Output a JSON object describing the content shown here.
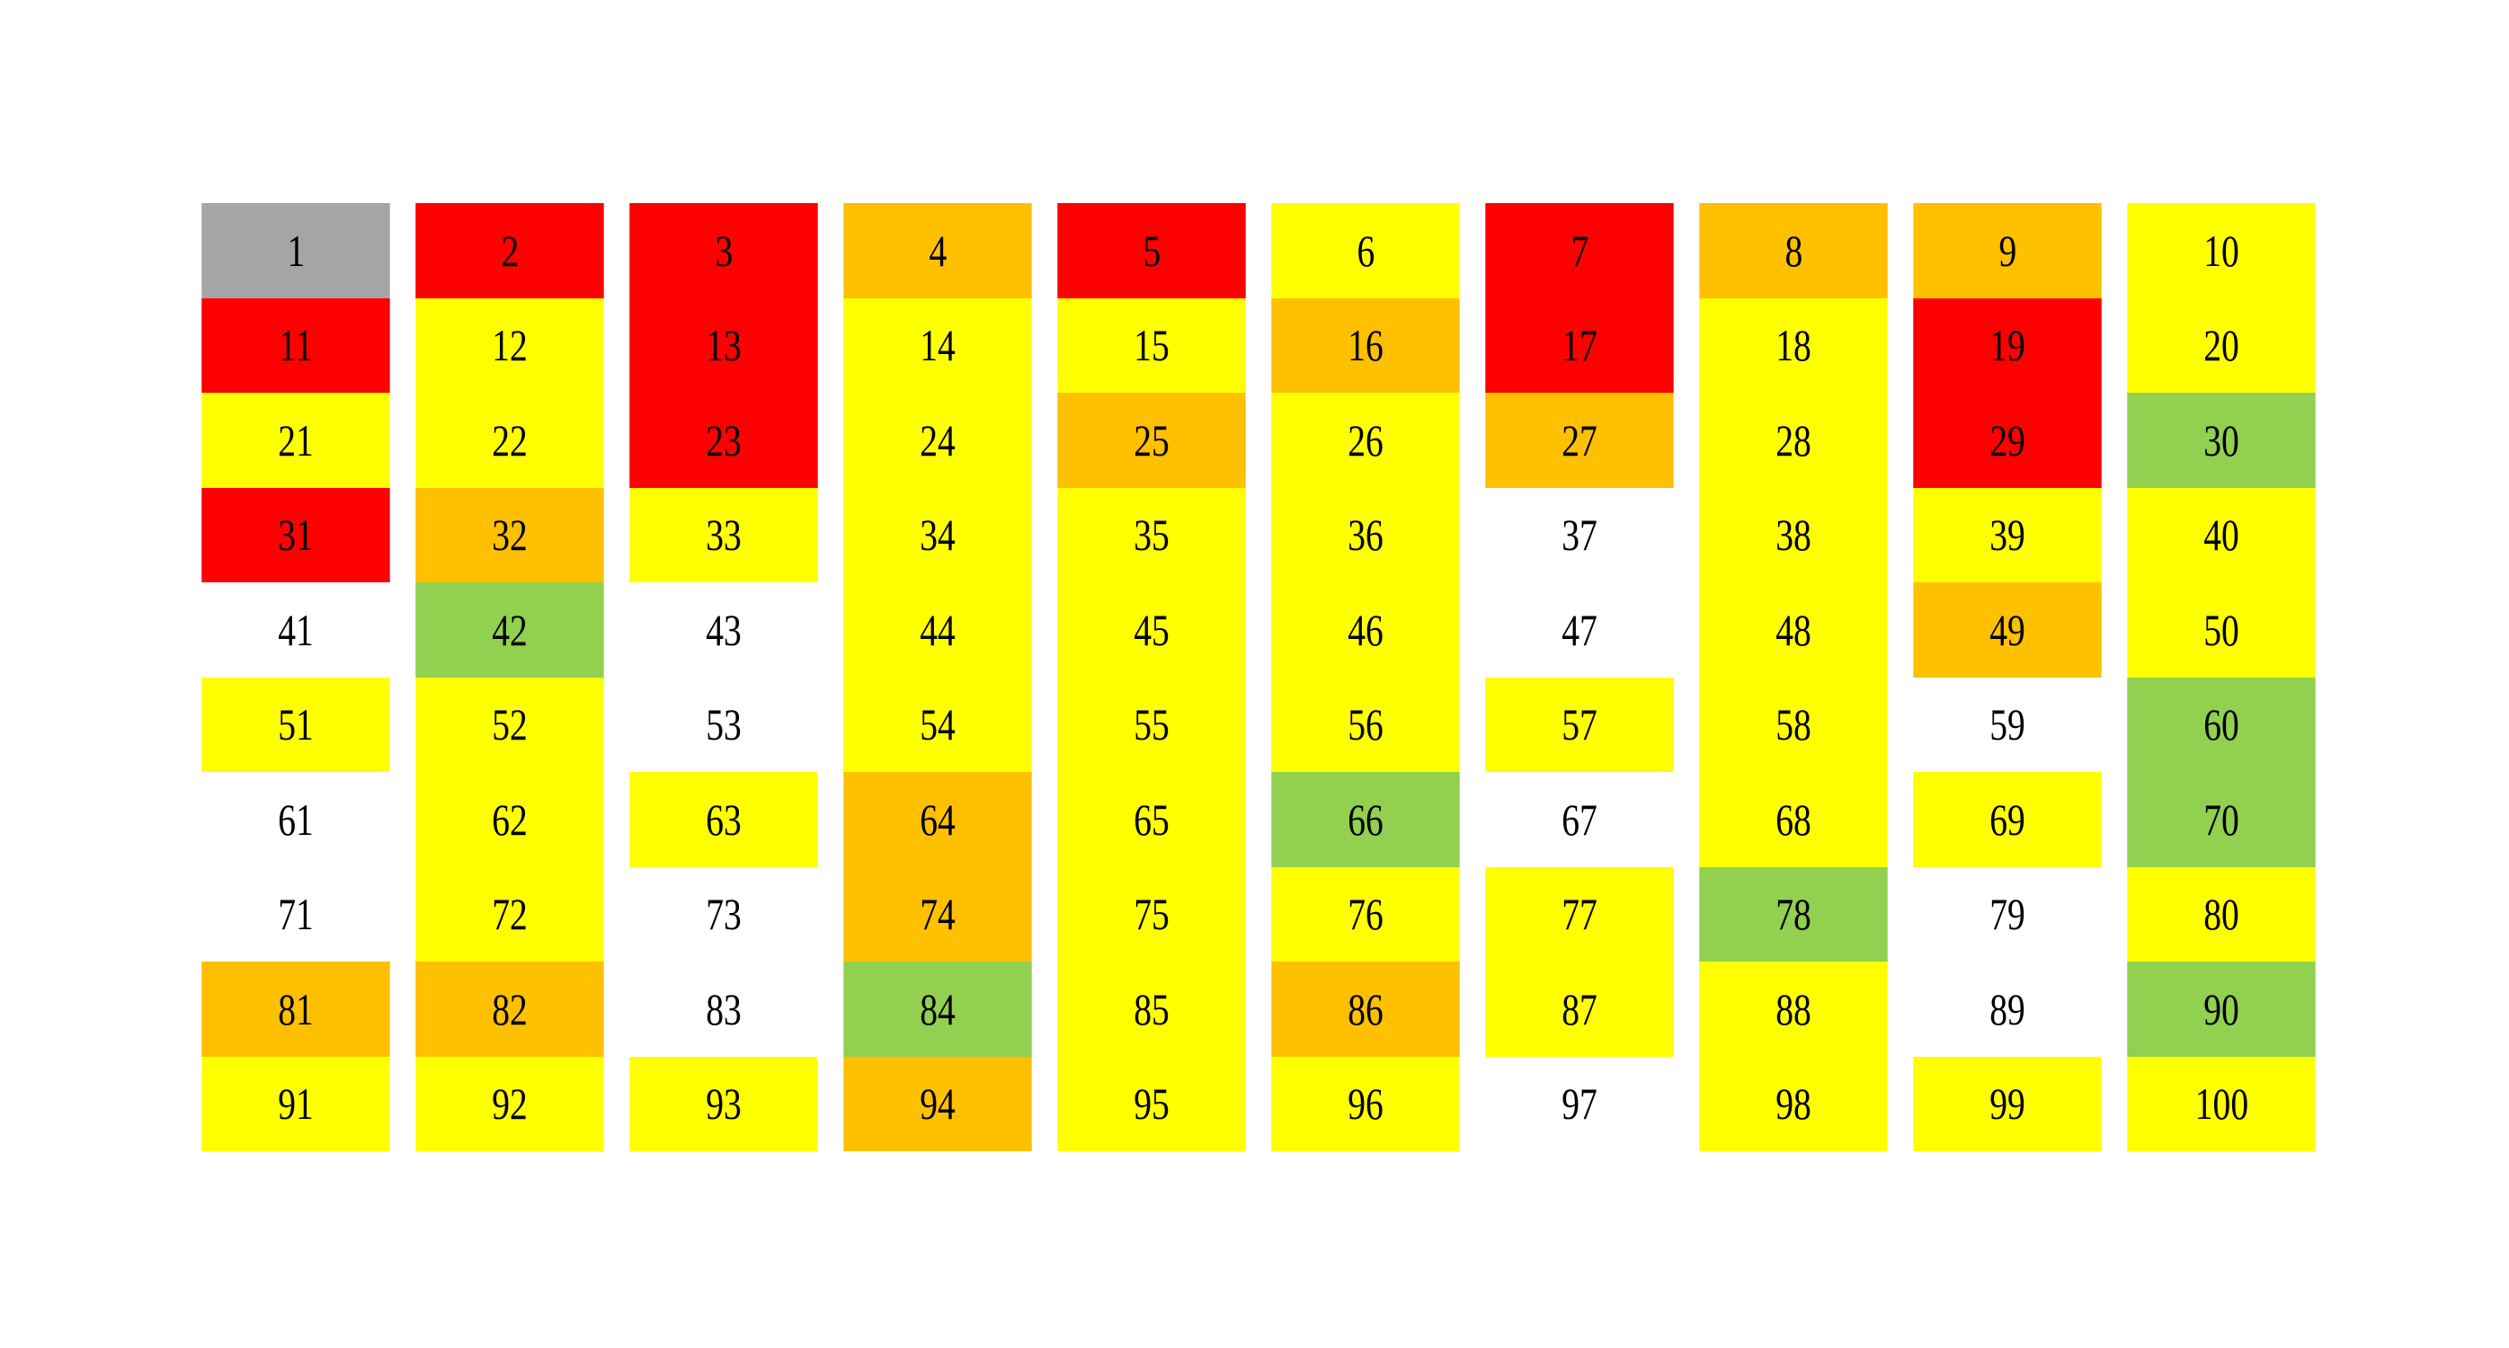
{
  "legend_colors": {
    "gray": "#a5a5a5",
    "red": "#ff0000",
    "orange": "#ffc000",
    "yellow": "#ffff00",
    "green": "#92d050",
    "white": "#ffffff"
  },
  "grid": {
    "columns": 10,
    "cells": [
      {
        "label": "1",
        "color": "gray"
      },
      {
        "label": "2",
        "color": "red"
      },
      {
        "label": "3",
        "color": "red"
      },
      {
        "label": "4",
        "color": "orange"
      },
      {
        "label": "5",
        "color": "red"
      },
      {
        "label": "6",
        "color": "yellow"
      },
      {
        "label": "7",
        "color": "red"
      },
      {
        "label": "8",
        "color": "orange"
      },
      {
        "label": "9",
        "color": "orange"
      },
      {
        "label": "10",
        "color": "yellow"
      },
      {
        "label": "11",
        "color": "red"
      },
      {
        "label": "12",
        "color": "yellow"
      },
      {
        "label": "13",
        "color": "red"
      },
      {
        "label": "14",
        "color": "yellow"
      },
      {
        "label": "15",
        "color": "yellow"
      },
      {
        "label": "16",
        "color": "orange"
      },
      {
        "label": "17",
        "color": "red"
      },
      {
        "label": "18",
        "color": "yellow"
      },
      {
        "label": "19",
        "color": "red"
      },
      {
        "label": "20",
        "color": "yellow"
      },
      {
        "label": "21",
        "color": "yellow"
      },
      {
        "label": "22",
        "color": "yellow"
      },
      {
        "label": "23",
        "color": "red"
      },
      {
        "label": "24",
        "color": "yellow"
      },
      {
        "label": "25",
        "color": "orange"
      },
      {
        "label": "26",
        "color": "yellow"
      },
      {
        "label": "27",
        "color": "orange"
      },
      {
        "label": "28",
        "color": "yellow"
      },
      {
        "label": "29",
        "color": "red"
      },
      {
        "label": "30",
        "color": "green"
      },
      {
        "label": "31",
        "color": "red"
      },
      {
        "label": "32",
        "color": "orange"
      },
      {
        "label": "33",
        "color": "yellow"
      },
      {
        "label": "34",
        "color": "yellow"
      },
      {
        "label": "35",
        "color": "yellow"
      },
      {
        "label": "36",
        "color": "yellow"
      },
      {
        "label": "37",
        "color": "white"
      },
      {
        "label": "38",
        "color": "yellow"
      },
      {
        "label": "39",
        "color": "yellow"
      },
      {
        "label": "40",
        "color": "yellow"
      },
      {
        "label": "41",
        "color": "white"
      },
      {
        "label": "42",
        "color": "green"
      },
      {
        "label": "43",
        "color": "white"
      },
      {
        "label": "44",
        "color": "yellow"
      },
      {
        "label": "45",
        "color": "yellow"
      },
      {
        "label": "46",
        "color": "yellow"
      },
      {
        "label": "47",
        "color": "white"
      },
      {
        "label": "48",
        "color": "yellow"
      },
      {
        "label": "49",
        "color": "orange"
      },
      {
        "label": "50",
        "color": "yellow"
      },
      {
        "label": "51",
        "color": "yellow"
      },
      {
        "label": "52",
        "color": "yellow"
      },
      {
        "label": "53",
        "color": "white"
      },
      {
        "label": "54",
        "color": "yellow"
      },
      {
        "label": "55",
        "color": "yellow"
      },
      {
        "label": "56",
        "color": "yellow"
      },
      {
        "label": "57",
        "color": "yellow"
      },
      {
        "label": "58",
        "color": "yellow"
      },
      {
        "label": "59",
        "color": "white"
      },
      {
        "label": "60",
        "color": "green"
      },
      {
        "label": "61",
        "color": "white"
      },
      {
        "label": "62",
        "color": "yellow"
      },
      {
        "label": "63",
        "color": "yellow"
      },
      {
        "label": "64",
        "color": "orange"
      },
      {
        "label": "65",
        "color": "yellow"
      },
      {
        "label": "66",
        "color": "green"
      },
      {
        "label": "67",
        "color": "white"
      },
      {
        "label": "68",
        "color": "yellow"
      },
      {
        "label": "69",
        "color": "yellow"
      },
      {
        "label": "70",
        "color": "green"
      },
      {
        "label": "71",
        "color": "white"
      },
      {
        "label": "72",
        "color": "yellow"
      },
      {
        "label": "73",
        "color": "white"
      },
      {
        "label": "74",
        "color": "orange"
      },
      {
        "label": "75",
        "color": "yellow"
      },
      {
        "label": "76",
        "color": "yellow"
      },
      {
        "label": "77",
        "color": "yellow"
      },
      {
        "label": "78",
        "color": "green"
      },
      {
        "label": "79",
        "color": "white"
      },
      {
        "label": "80",
        "color": "yellow"
      },
      {
        "label": "81",
        "color": "orange"
      },
      {
        "label": "82",
        "color": "orange"
      },
      {
        "label": "83",
        "color": "white"
      },
      {
        "label": "84",
        "color": "green"
      },
      {
        "label": "85",
        "color": "yellow"
      },
      {
        "label": "86",
        "color": "orange"
      },
      {
        "label": "87",
        "color": "yellow"
      },
      {
        "label": "88",
        "color": "yellow"
      },
      {
        "label": "89",
        "color": "white"
      },
      {
        "label": "90",
        "color": "green"
      },
      {
        "label": "91",
        "color": "yellow"
      },
      {
        "label": "92",
        "color": "yellow"
      },
      {
        "label": "93",
        "color": "yellow"
      },
      {
        "label": "94",
        "color": "orange"
      },
      {
        "label": "95",
        "color": "yellow"
      },
      {
        "label": "96",
        "color": "yellow"
      },
      {
        "label": "97",
        "color": "white"
      },
      {
        "label": "98",
        "color": "yellow"
      },
      {
        "label": "99",
        "color": "yellow"
      },
      {
        "label": "100",
        "color": "yellow"
      }
    ]
  }
}
